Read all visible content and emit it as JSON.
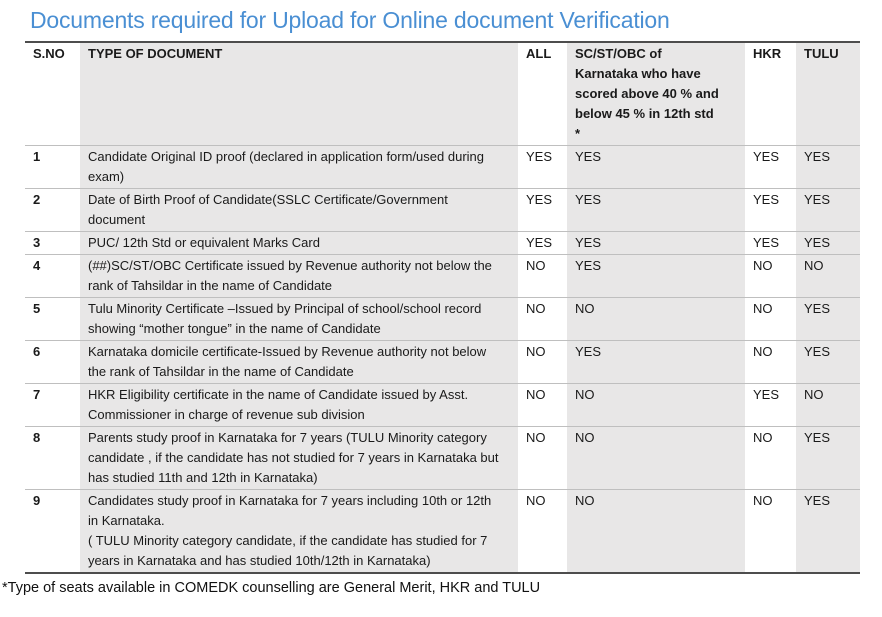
{
  "title": "Documents required for Upload for Online document Verification",
  "table": {
    "columns": [
      "S.NO",
      "TYPE OF DOCUMENT",
      "ALL",
      "SC/ST/OBC of Karnataka who have scored above 40 % and below 45 % in 12th std\n*",
      "HKR",
      "TULU"
    ],
    "rows": [
      {
        "sno": "1",
        "doc": "Candidate Original ID proof (declared in application form/used during exam)",
        "all": "YES",
        "scst": "YES",
        "hkr": "YES",
        "tulu": "YES"
      },
      {
        "sno": "2",
        "doc": "Date of Birth Proof of Candidate(SSLC Certificate/Government document",
        "all": "YES",
        "scst": "YES",
        "hkr": "YES",
        "tulu": "YES"
      },
      {
        "sno": "3",
        "doc": "PUC/ 12th Std or equivalent Marks Card",
        "all": "YES",
        "scst": "YES",
        "hkr": "YES",
        "tulu": "YES"
      },
      {
        "sno": "4",
        "doc": "(##)SC/ST/OBC Certificate issued by Revenue authority not below the rank of Tahsildar in the name of Candidate",
        "all": "NO",
        "scst": "YES",
        "hkr": "NO",
        "tulu": "NO"
      },
      {
        "sno": "5",
        "doc": "Tulu Minority Certificate –Issued by Principal of school/school record showing “mother tongue” in the name of Candidate",
        "all": "NO",
        "scst": "NO",
        "hkr": "NO",
        "tulu": "YES"
      },
      {
        "sno": "6",
        "doc": "Karnataka domicile certificate-Issued by Revenue authority not below the rank of Tahsildar in the name of Candidate",
        "all": "NO",
        "scst": "YES",
        "hkr": "NO",
        "tulu": "YES"
      },
      {
        "sno": "7",
        "doc": "HKR Eligibility certificate in the name of Candidate issued by Asst. Commissioner in charge of revenue sub division",
        "all": "NO",
        "scst": "NO",
        "hkr": "YES",
        "tulu": "NO"
      },
      {
        "sno": "8",
        "doc": "Parents study proof in Karnataka for 7 years (TULU Minority category candidate , if the candidate has not studied for 7 years in Karnataka but has studied 11th and 12th in Karnataka)",
        "all": "NO",
        "scst": "NO",
        "hkr": "NO",
        "tulu": "YES"
      },
      {
        "sno": "9",
        "doc": "Candidates study proof in Karnataka for 7 years including 10th or 12th in Karnataka.\n( TULU Minority category candidate, if the candidate has studied for 7 years in Karnataka and has studied 10th/12th in Karnataka)",
        "all": "NO",
        "scst": "NO",
        "hkr": "NO",
        "tulu": "YES"
      }
    ]
  },
  "footnote": "*Type of seats available in COMEDK counselling are General Merit, HKR and TULU",
  "colors": {
    "title_blue": "#4a8fd3",
    "shade_gray": "#e8e7e7",
    "border_dark": "#4d4d4d",
    "border_light": "#bfbfbf",
    "text": "#1a1a1a"
  }
}
